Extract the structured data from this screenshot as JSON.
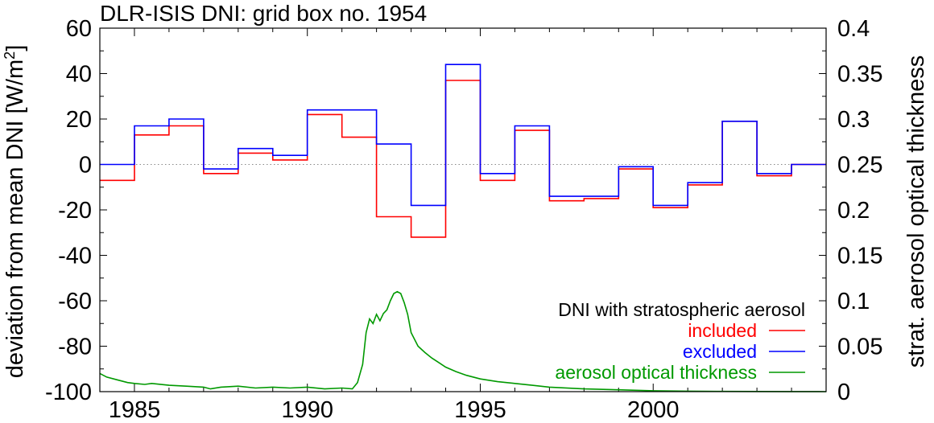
{
  "chart_data": {
    "type": "line",
    "title": "DLR-ISIS DNI: grid box no. 1954",
    "ylabel": "deviation from mean DNI [W/m",
    "ylabel_sup": "2",
    "ylabel_close": "]",
    "y2label": "strat. aerosol optical thickness",
    "xlabel": "",
    "xlim": [
      1984,
      2005
    ],
    "ylim": [
      -100,
      60
    ],
    "y2lim": [
      0,
      0.4
    ],
    "x_ticks": [
      1985,
      1990,
      1995,
      2000
    ],
    "y_ticks": [
      -100,
      -80,
      -60,
      -40,
      -20,
      0,
      20,
      40,
      60
    ],
    "y2_ticks": [
      "0",
      "0.05",
      "0.1",
      "0.15",
      "0.2",
      "0.25",
      "0.3",
      "0.35",
      "0.4"
    ],
    "y2_tick_values": [
      0,
      0.05,
      0.1,
      0.15,
      0.2,
      0.25,
      0.3,
      0.35,
      0.4
    ],
    "zero_line": "dotted grey at y = 0",
    "grid": false,
    "legend_position": "bottom-right",
    "legend_title": "DNI with stratospheric aerosol",
    "series": [
      {
        "name": "included",
        "color": "#ff0000",
        "style": "step",
        "x": [
          1984,
          1985,
          1986,
          1987,
          1988,
          1989,
          1990,
          1991,
          1992,
          1993,
          1994,
          1995,
          1996,
          1997,
          1998,
          1999,
          2000,
          2001,
          2002,
          2003,
          2004
        ],
        "y": [
          -7,
          13,
          17,
          -4,
          5,
          2,
          22,
          12,
          -23,
          -32,
          37,
          -7,
          15,
          -16,
          -15,
          -2,
          -19,
          -9,
          19,
          -5,
          0
        ]
      },
      {
        "name": "excluded",
        "color": "#0000ff",
        "style": "step",
        "x": [
          1984,
          1985,
          1986,
          1987,
          1988,
          1989,
          1990,
          1991,
          1992,
          1993,
          1994,
          1995,
          1996,
          1997,
          1998,
          1999,
          2000,
          2001,
          2002,
          2003,
          2004
        ],
        "y": [
          0,
          17,
          20,
          -2,
          7,
          4,
          24,
          24,
          9,
          -18,
          44,
          -4,
          17,
          -14,
          -14,
          -1,
          -18,
          -8,
          19,
          -4,
          0
        ]
      },
      {
        "name": "aerosol optical thickness",
        "color": "#009900",
        "axis": "right",
        "style": "line",
        "x": [
          1984.0,
          1984.2,
          1984.5,
          1984.8,
          1985.0,
          1985.3,
          1985.5,
          1986.0,
          1986.5,
          1987.0,
          1987.2,
          1987.5,
          1988.0,
          1988.5,
          1989.0,
          1989.5,
          1990.0,
          1990.5,
          1991.0,
          1991.3,
          1991.45,
          1991.6,
          1991.7,
          1991.8,
          1991.9,
          1992.0,
          1992.1,
          1992.2,
          1992.3,
          1992.4,
          1992.5,
          1992.6,
          1992.7,
          1992.8,
          1992.9,
          1993.0,
          1993.2,
          1993.4,
          1993.6,
          1993.8,
          1994.0,
          1994.3,
          1994.6,
          1995.0,
          1995.5,
          1996.0,
          1996.5,
          1997.0,
          1998.0,
          1999.0,
          2000.0,
          2001.0,
          2002.0,
          2003.0,
          2004.0,
          2005.0
        ],
        "y": [
          0.02,
          0.016,
          0.013,
          0.01,
          0.009,
          0.008,
          0.009,
          0.007,
          0.006,
          0.005,
          0.003,
          0.005,
          0.006,
          0.004,
          0.005,
          0.004,
          0.005,
          0.003,
          0.004,
          0.003,
          0.01,
          0.03,
          0.065,
          0.08,
          0.075,
          0.085,
          0.078,
          0.086,
          0.09,
          0.1,
          0.108,
          0.11,
          0.108,
          0.098,
          0.085,
          0.065,
          0.05,
          0.043,
          0.037,
          0.032,
          0.027,
          0.022,
          0.018,
          0.014,
          0.011,
          0.009,
          0.007,
          0.005,
          0.003,
          0.002,
          0.001,
          0.0005,
          0.0003,
          0.0002,
          0.0001,
          0.0
        ]
      }
    ]
  }
}
